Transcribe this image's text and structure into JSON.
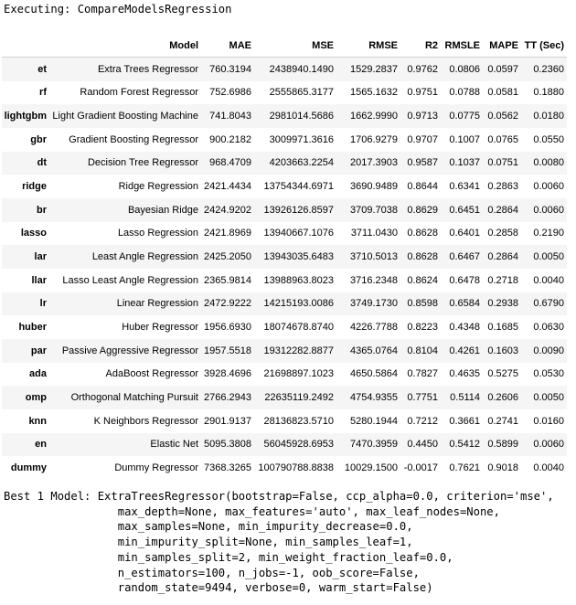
{
  "status": "Executing: CompareModelsRegression",
  "table": {
    "columns": [
      "",
      "Model",
      "MAE",
      "MSE",
      "RMSE",
      "R2",
      "RMSLE",
      "MAPE",
      "TT (Sec)"
    ],
    "rows": [
      [
        "et",
        "Extra Trees Regressor",
        "760.3194",
        "2438940.1490",
        "1529.2837",
        "0.9762",
        "0.0806",
        "0.0597",
        "0.2360"
      ],
      [
        "rf",
        "Random Forest Regressor",
        "752.6986",
        "2555865.3177",
        "1565.1632",
        "0.9751",
        "0.0788",
        "0.0581",
        "0.1880"
      ],
      [
        "lightgbm",
        "Light Gradient Boosting Machine",
        "741.8043",
        "2981014.5686",
        "1662.9990",
        "0.9713",
        "0.0775",
        "0.0562",
        "0.0180"
      ],
      [
        "gbr",
        "Gradient Boosting Regressor",
        "900.2182",
        "3009971.3616",
        "1706.9279",
        "0.9707",
        "0.1007",
        "0.0765",
        "0.0550"
      ],
      [
        "dt",
        "Decision Tree Regressor",
        "968.4709",
        "4203663.2254",
        "2017.3903",
        "0.9587",
        "0.1037",
        "0.0751",
        "0.0080"
      ],
      [
        "ridge",
        "Ridge Regression",
        "2421.4434",
        "13754344.6971",
        "3690.9489",
        "0.8644",
        "0.6341",
        "0.2863",
        "0.0060"
      ],
      [
        "br",
        "Bayesian Ridge",
        "2424.9202",
        "13926126.8597",
        "3709.7038",
        "0.8629",
        "0.6451",
        "0.2864",
        "0.0060"
      ],
      [
        "lasso",
        "Lasso Regression",
        "2421.8969",
        "13940667.1076",
        "3711.0430",
        "0.8628",
        "0.6401",
        "0.2858",
        "0.2190"
      ],
      [
        "lar",
        "Least Angle Regression",
        "2425.2050",
        "13943035.6483",
        "3710.5013",
        "0.8628",
        "0.6467",
        "0.2864",
        "0.0050"
      ],
      [
        "llar",
        "Lasso Least Angle Regression",
        "2365.9814",
        "13988963.8023",
        "3716.2348",
        "0.8624",
        "0.6478",
        "0.2718",
        "0.0040"
      ],
      [
        "lr",
        "Linear Regression",
        "2472.9222",
        "14215193.0086",
        "3749.1730",
        "0.8598",
        "0.6584",
        "0.2938",
        "0.6790"
      ],
      [
        "huber",
        "Huber Regressor",
        "1956.6930",
        "18074678.8740",
        "4226.7788",
        "0.8223",
        "0.4348",
        "0.1685",
        "0.0630"
      ],
      [
        "par",
        "Passive Aggressive Regressor",
        "1957.5518",
        "19312282.8877",
        "4365.0764",
        "0.8104",
        "0.4261",
        "0.1603",
        "0.0090"
      ],
      [
        "ada",
        "AdaBoost Regressor",
        "3928.4696",
        "21698897.1023",
        "4650.5864",
        "0.7827",
        "0.4635",
        "0.5275",
        "0.0530"
      ],
      [
        "omp",
        "Orthogonal Matching Pursuit",
        "2766.2943",
        "22635119.2492",
        "4754.9355",
        "0.7751",
        "0.5114",
        "0.2606",
        "0.0050"
      ],
      [
        "knn",
        "K Neighbors Regressor",
        "2901.9137",
        "28136823.5710",
        "5280.1944",
        "0.7212",
        "0.3661",
        "0.2741",
        "0.0160"
      ],
      [
        "en",
        "Elastic Net",
        "5095.3808",
        "56045928.6953",
        "7470.3959",
        "0.4450",
        "0.5412",
        "0.5899",
        "0.0060"
      ],
      [
        "dummy",
        "Dummy Regressor",
        "7368.3265",
        "100790788.8838",
        "10029.1500",
        "-0.0017",
        "0.7621",
        "0.9018",
        "0.0040"
      ]
    ]
  },
  "best_model_text": "Best 1 Model: ExtraTreesRegressor(bootstrap=False, ccp_alpha=0.0, criterion='mse',\n                 max_depth=None, max_features='auto', max_leaf_nodes=None,\n                 max_samples=None, min_impurity_decrease=0.0,\n                 min_impurity_split=None, min_samples_leaf=1,\n                 min_samples_split=2, min_weight_fraction_leaf=0.0,\n                 n_estimators=100, n_jobs=-1, oob_score=False,\n                 random_state=9494, verbose=0, warm_start=False)"
}
